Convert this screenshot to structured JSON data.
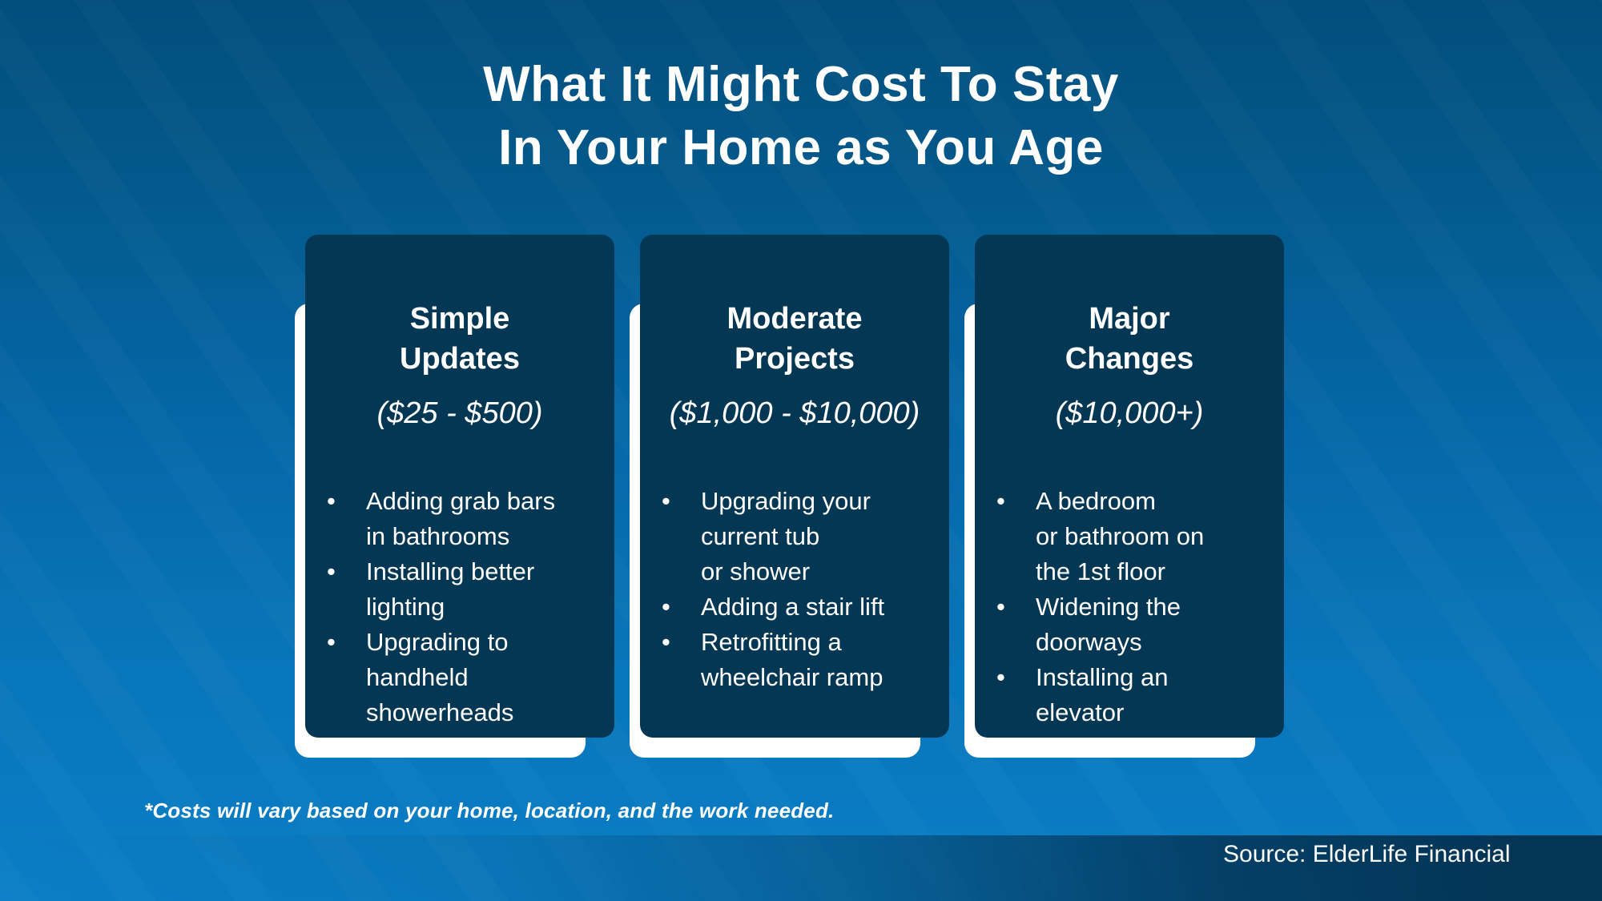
{
  "title": {
    "line1": "What It Might Cost To Stay",
    "line2": "In Your Home as You Age"
  },
  "cards": [
    {
      "title": "Simple\nUpdates",
      "price": "($25 - $500)",
      "bullets": [
        "Adding grab bars\nin bathrooms",
        "Installing better\nlighting",
        "Upgrading to\nhandheld\nshowerheads"
      ]
    },
    {
      "title": "Moderate\nProjects",
      "price": "($1,000 - $10,000)",
      "bullets": [
        "Upgrading your\ncurrent tub\nor shower",
        "Adding a stair lift",
        "Retrofitting a\nwheelchair ramp"
      ]
    },
    {
      "title": "Major\nChanges",
      "price": "($10,000+)",
      "bullets": [
        "A bedroom\nor bathroom on\nthe 1st floor",
        "Widening the\ndoorways",
        "Installing an\nelevator"
      ]
    }
  ],
  "footnote": "*Costs will vary based on your home, location, and the work needed.",
  "source": "Source: ElderLife Financial",
  "colors": {
    "background_top": "#014E7C",
    "background_bottom": "#0A7EC6",
    "card_navy": "#043754",
    "card_backdrop": "#FFFFFF",
    "source_band_dark": "#033556",
    "text": "#FFFFFF"
  }
}
